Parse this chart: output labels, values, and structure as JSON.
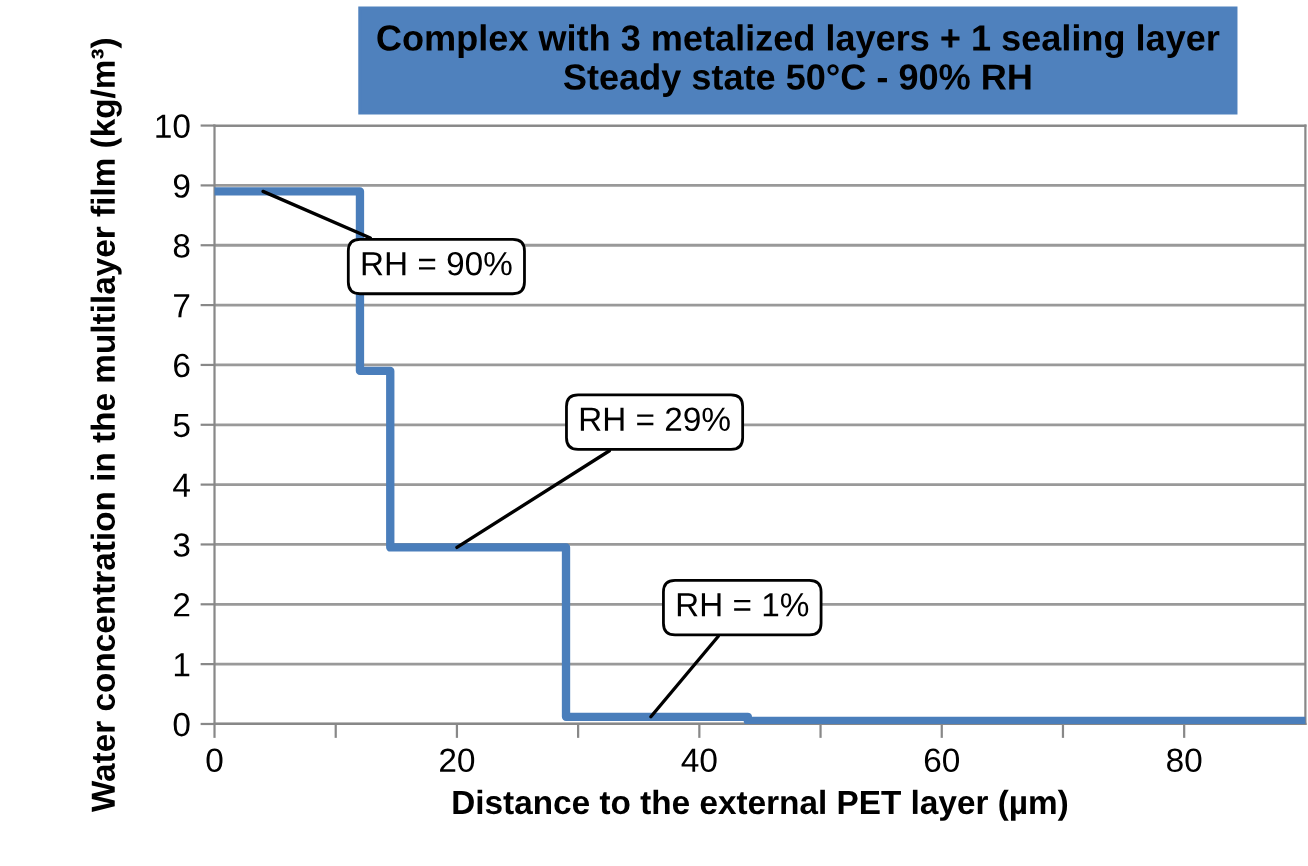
{
  "chart_data": {
    "type": "step",
    "title": "Complex with 3 metalized layers + 1 sealing layer\nSteady state 50°C - 90% RH",
    "xlabel": "Distance to the external PET layer (µm)",
    "ylabel": "Water concentration in the multilayer film (kg/m³)",
    "series": [
      {
        "color": "#4a7ebb",
        "x": [
          0,
          12,
          14.5,
          29,
          44,
          90
        ],
        "values": [
          8.9,
          5.9,
          2.95,
          0.12,
          0.05,
          0.05
        ]
      }
    ],
    "xlim": [
      0,
      90
    ],
    "xticks": [
      0,
      {
        "value": 10,
        "label": null
      },
      20,
      {
        "value": 30,
        "label": null
      },
      40,
      {
        "value": 50,
        "label": null
      },
      60,
      {
        "value": 70,
        "label": null
      },
      80
    ],
    "ylim": [
      0,
      10
    ],
    "yticks": [
      0,
      1,
      2,
      3,
      4,
      5,
      6,
      7,
      8,
      9,
      10
    ],
    "grid": "y",
    "annotations": [
      {
        "text": "RH = 90%",
        "x": 4,
        "y": 8.9
      },
      {
        "text": "RH = 29%",
        "x": 20,
        "y": 2.95
      },
      {
        "text": "RH = 1%",
        "x": 36,
        "y": 0.12
      }
    ]
  }
}
